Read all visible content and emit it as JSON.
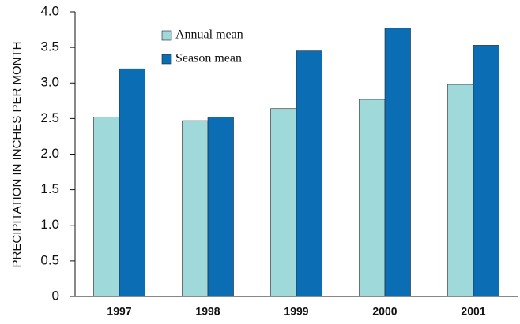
{
  "chart_data": {
    "type": "bar",
    "y_label": "PRECIPITATION IN INCHES PER MONTH",
    "categories": [
      "1997",
      "1998",
      "1999",
      "2000",
      "2001"
    ],
    "series": [
      {
        "name": "Annual mean",
        "color": "#9fd9da",
        "values": [
          2.52,
          2.47,
          2.64,
          2.77,
          2.98
        ]
      },
      {
        "name": "Season mean",
        "color": "#0b6db3",
        "values": [
          3.2,
          2.52,
          3.45,
          3.77,
          3.53
        ]
      }
    ],
    "ylim": [
      0,
      4
    ],
    "yticks": [
      0,
      0.5,
      {
        "value": 1,
        "label": "1.0"
      },
      1.5,
      {
        "value": 2,
        "label": "2.0"
      },
      2.5,
      {
        "value": 3,
        "label": "3.0"
      },
      3.5,
      {
        "value": 4,
        "label": "4.0"
      }
    ],
    "grid": false,
    "legend": "top-left"
  }
}
